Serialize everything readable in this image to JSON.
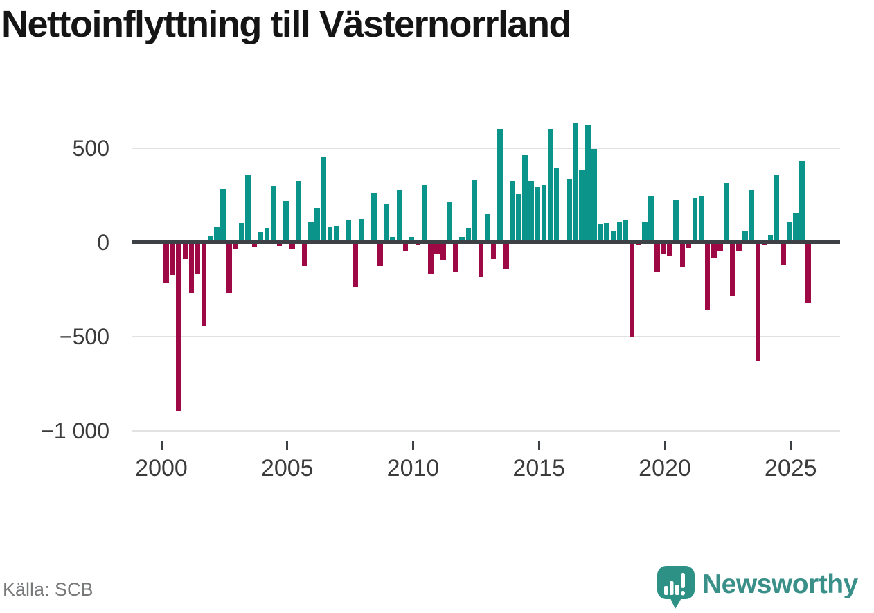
{
  "page": {
    "title": "Nettoinflyttning till Västernorrland",
    "source": "Källa: SCB",
    "brand": {
      "name": "Newsworthy",
      "color": "#3a9089"
    }
  },
  "chart_data": {
    "type": "bar",
    "title": "Nettoinflyttning till Västernorrland",
    "frequency": "quarterly",
    "x_range": "2000 Q1 – 2025 Q3",
    "x_tick_labels": [
      "2000",
      "2005",
      "2010",
      "2015",
      "2020",
      "2025"
    ],
    "x_tick_years": [
      2000,
      2005,
      2010,
      2015,
      2020,
      2025
    ],
    "y_ticks": [
      500,
      0,
      -500,
      -1000
    ],
    "y_tick_labels": [
      "500",
      "0",
      "−500",
      "−1 000"
    ],
    "ylim": [
      -1060,
      690
    ],
    "grid": "horizontal",
    "legend": "none",
    "colors": {
      "positive": "#0b9489",
      "negative": "#9e0845",
      "axis": "#3d4045",
      "gridline": "#e2e2e2"
    },
    "values_by_year": {
      "2000": [
        -215,
        -175,
        -900,
        -90
      ],
      "2001": [
        -270,
        -170,
        -445,
        35
      ],
      "2002": [
        80,
        280,
        -270,
        -40
      ],
      "2003": [
        100,
        355,
        -25,
        55
      ],
      "2004": [
        75,
        295,
        -20,
        218
      ],
      "2005": [
        -40,
        320,
        -127,
        104
      ],
      "2006": [
        181,
        450,
        78,
        87
      ],
      "2007": [
        0,
        120,
        -240,
        125
      ],
      "2008": [
        0,
        261,
        -125,
        203
      ],
      "2009": [
        26,
        278,
        -49,
        28
      ],
      "2010": [
        -17,
        303,
        -167,
        -60
      ],
      "2011": [
        -93,
        212,
        -160,
        27
      ],
      "2012": [
        77,
        328,
        -185,
        148
      ],
      "2013": [
        -89,
        600,
        -144,
        320
      ],
      "2014": [
        256,
        462,
        320,
        293
      ],
      "2015": [
        305,
        600,
        390,
        0
      ],
      "2016": [
        335,
        630,
        384,
        620
      ],
      "2017": [
        495,
        94,
        100,
        57
      ],
      "2018": [
        107,
        119,
        -505,
        -18
      ],
      "2019": [
        106,
        244,
        -161,
        -64
      ],
      "2020": [
        -77,
        224,
        -135,
        -33
      ],
      "2021": [
        235,
        246,
        -360,
        -88
      ],
      "2022": [
        -51,
        315,
        -287,
        -51
      ],
      "2023": [
        57,
        274,
        -629,
        -18
      ],
      "2024": [
        40,
        360,
        -122,
        110
      ],
      "2025": [
        156,
        433,
        -323
      ]
    },
    "source": "Källa: SCB"
  }
}
